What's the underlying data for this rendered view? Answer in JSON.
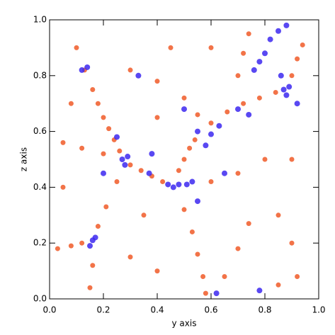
{
  "chart_data": {
    "type": "scatter",
    "xlabel": "y axis",
    "ylabel": "z axis",
    "xlim": [
      0,
      1
    ],
    "ylim": [
      0,
      1
    ],
    "xticks": [
      {
        "value": 0,
        "label": "0.0"
      },
      {
        "value": 0.2,
        "label": "0.2"
      },
      {
        "value": 0.4,
        "label": "0.4"
      },
      {
        "value": 0.6,
        "label": "0.6"
      },
      {
        "value": 0.8,
        "label": "0.8"
      },
      {
        "value": 1,
        "label": "1.0"
      }
    ],
    "yticks": [
      {
        "value": 0,
        "label": "0.0"
      },
      {
        "value": 0.2,
        "label": "0.2"
      },
      {
        "value": 0.4,
        "label": "0.4"
      },
      {
        "value": 0.6,
        "label": "0.6"
      },
      {
        "value": 0.8,
        "label": "0.8"
      },
      {
        "value": 1,
        "label": "1.0"
      }
    ],
    "series": [
      {
        "color": "#f05a28",
        "x": [
          0.2,
          0.22,
          0.24,
          0.26,
          0.3,
          0.34,
          0.38,
          0.42,
          0.48,
          0.5,
          0.52,
          0.54,
          0.6,
          0.66,
          0.72,
          0.78,
          0.84,
          0.9,
          0.92,
          0.94,
          0.5,
          0.53,
          0.55,
          0.57,
          0.58,
          0.25,
          0.21,
          0.18,
          0.16,
          0.15,
          0.03,
          0.08,
          0.12,
          0.1,
          0.13,
          0.16,
          0.18,
          0.05,
          0.12,
          0.2,
          0.6,
          0.7,
          0.8,
          0.9,
          0.65,
          0.7,
          0.74,
          0.85,
          0.92,
          0.3,
          0.4,
          0.5,
          0.55,
          0.7,
          0.72,
          0.74,
          0.35,
          0.3,
          0.4,
          0.85,
          0.9,
          0.4,
          0.45,
          0.6,
          0.05,
          0.08
        ],
        "y": [
          0.65,
          0.61,
          0.57,
          0.53,
          0.48,
          0.46,
          0.44,
          0.42,
          0.46,
          0.5,
          0.54,
          0.57,
          0.63,
          0.67,
          0.7,
          0.72,
          0.74,
          0.8,
          0.86,
          0.91,
          0.32,
          0.24,
          0.16,
          0.08,
          0.02,
          0.42,
          0.33,
          0.26,
          0.12,
          0.04,
          0.18,
          0.19,
          0.2,
          0.9,
          0.82,
          0.75,
          0.7,
          0.56,
          0.54,
          0.52,
          0.42,
          0.45,
          0.5,
          0.5,
          0.08,
          0.18,
          0.27,
          0.05,
          0.08,
          0.82,
          0.78,
          0.72,
          0.66,
          0.8,
          0.88,
          0.95,
          0.3,
          0.15,
          0.1,
          0.3,
          0.2,
          0.65,
          0.9,
          0.9,
          0.4,
          0.7
        ]
      },
      {
        "color": "#3c28f0",
        "x": [
          0.44,
          0.46,
          0.48,
          0.51,
          0.53,
          0.27,
          0.29,
          0.28,
          0.87,
          0.89,
          0.88,
          0.86,
          0.55,
          0.6,
          0.63,
          0.58,
          0.16,
          0.15,
          0.17,
          0.12,
          0.14,
          0.85,
          0.88,
          0.82,
          0.33,
          0.78,
          0.8,
          0.76,
          0.92,
          0.7,
          0.74,
          0.25,
          0.37,
          0.55,
          0.62,
          0.78,
          0.2,
          0.5,
          0.38,
          0.65
        ],
        "y": [
          0.41,
          0.4,
          0.41,
          0.41,
          0.42,
          0.5,
          0.51,
          0.48,
          0.75,
          0.76,
          0.73,
          0.8,
          0.6,
          0.59,
          0.62,
          0.55,
          0.21,
          0.19,
          0.22,
          0.82,
          0.83,
          0.96,
          0.98,
          0.93,
          0.8,
          0.85,
          0.88,
          0.82,
          0.7,
          0.68,
          0.66,
          0.58,
          0.45,
          0.35,
          0.02,
          0.03,
          0.45,
          0.68,
          0.52,
          0.45
        ]
      }
    ]
  }
}
